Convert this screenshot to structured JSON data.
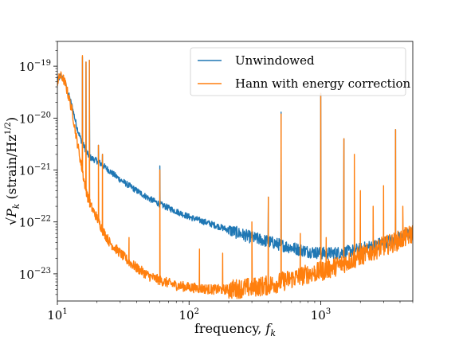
{
  "chart_data": {
    "type": "line",
    "title": "",
    "xlabel": "frequency, f_k",
    "ylabel": "√P_k (strain/Hz^1/2)",
    "xscale": "log",
    "yscale": "log",
    "xlim": [
      10,
      5000
    ],
    "ylim": [
      3e-24,
      3e-19
    ],
    "grid": false,
    "legend_position": "top-right",
    "x_ticks": [
      {
        "value": 10,
        "base": "10",
        "exp": "1"
      },
      {
        "value": 100,
        "base": "10",
        "exp": "2"
      },
      {
        "value": 1000,
        "base": "10",
        "exp": "3"
      }
    ],
    "y_ticks": [
      {
        "value": 1e-19,
        "base": "10",
        "exp": "−19"
      },
      {
        "value": 1e-20,
        "base": "10",
        "exp": "−20"
      },
      {
        "value": 1e-21,
        "base": "10",
        "exp": "−21"
      },
      {
        "value": 1e-22,
        "base": "10",
        "exp": "−22"
      },
      {
        "value": 1e-23,
        "base": "10",
        "exp": "−23"
      }
    ],
    "series": [
      {
        "name": "Unwindowed",
        "color": "#1f77b4",
        "x": [
          10,
          10.5,
          11,
          11.5,
          12,
          13,
          14,
          15,
          16,
          17,
          18,
          20,
          22,
          25,
          30,
          40,
          50,
          60,
          80,
          100,
          150,
          200,
          300,
          400,
          500,
          600,
          700,
          800,
          900,
          1000,
          1200,
          1500,
          2000,
          2500,
          3000,
          4000,
          5000
        ],
        "y": [
          5e-20,
          6.5e-20,
          6e-20,
          4.5e-20,
          3.2e-20,
          1.6e-20,
          7e-21,
          4e-21,
          2.8e-21,
          2e-21,
          1.7e-21,
          1.5e-21,
          1.25e-21,
          9.5e-22,
          6.5e-22,
          4e-22,
          2.8e-22,
          2.2e-22,
          1.6e-22,
          1.25e-22,
          9e-23,
          7e-23,
          5e-23,
          4.2e-23,
          3.6e-23,
          3.2e-23,
          2.9e-23,
          2.7e-23,
          2.6e-23,
          2.5e-23,
          2.5e-23,
          2.6e-23,
          3e-23,
          3.5e-23,
          4e-23,
          5e-23,
          6.5e-23
        ],
        "lines": [
          {
            "f": 15.5,
            "peak": 1.5e-19
          },
          {
            "f": 16.5,
            "peak": 1.2e-19
          },
          {
            "f": 17.5,
            "peak": 1.3e-19
          },
          {
            "f": 20.5,
            "peak": 3e-21
          },
          {
            "f": 22,
            "peak": 2e-21
          },
          {
            "f": 60,
            "peak": 1.2e-21
          },
          {
            "f": 300,
            "peak": 6e-23
          },
          {
            "f": 400,
            "peak": 3e-22
          },
          {
            "f": 500,
            "peak": 1.3e-20
          },
          {
            "f": 1000,
            "peak": 3e-20
          },
          {
            "f": 1500,
            "peak": 4e-21
          },
          {
            "f": 3700,
            "peak": 6e-21
          }
        ]
      },
      {
        "name": "Hann with energy correction",
        "color": "#ff7f0e",
        "x": [
          10,
          10.5,
          11,
          11.5,
          12,
          13,
          14,
          15,
          16,
          17,
          18,
          20,
          22,
          25,
          30,
          35,
          40,
          50,
          60,
          80,
          100,
          150,
          200,
          300,
          400,
          500,
          600,
          800,
          1000,
          1200,
          1500,
          2000,
          2500,
          3000,
          4000,
          5000
        ],
        "y": [
          5e-20,
          6.5e-20,
          6e-20,
          4.5e-20,
          3e-20,
          1.3e-20,
          4e-21,
          1.5e-21,
          6e-22,
          3e-22,
          2e-22,
          1.2e-22,
          7e-23,
          4e-23,
          2.5e-23,
          1.7e-23,
          1.3e-23,
          9e-24,
          7.5e-24,
          6e-24,
          5.5e-24,
          5e-24,
          5e-24,
          5.5e-24,
          6e-24,
          7e-24,
          8e-24,
          1e-23,
          1.1e-23,
          1.3e-23,
          1.6e-23,
          2.2e-23,
          2.8e-23,
          3.4e-23,
          4.5e-23,
          6e-23
        ],
        "lines": [
          {
            "f": 15.5,
            "peak": 1.6e-19
          },
          {
            "f": 16.5,
            "peak": 1.2e-19
          },
          {
            "f": 17.5,
            "peak": 1.3e-19
          },
          {
            "f": 20.5,
            "peak": 3e-21
          },
          {
            "f": 22,
            "peak": 2e-21
          },
          {
            "f": 35,
            "peak": 5e-23
          },
          {
            "f": 60,
            "peak": 1e-21
          },
          {
            "f": 120,
            "peak": 3e-23
          },
          {
            "f": 180,
            "peak": 2.5e-23
          },
          {
            "f": 300,
            "peak": 1e-22
          },
          {
            "f": 400,
            "peak": 3e-22
          },
          {
            "f": 500,
            "peak": 1.2e-20
          },
          {
            "f": 700,
            "peak": 6e-23
          },
          {
            "f": 1000,
            "peak": 3e-20
          },
          {
            "f": 1100,
            "peak": 5e-23
          },
          {
            "f": 1500,
            "peak": 4e-21
          },
          {
            "f": 1800,
            "peak": 2e-21
          },
          {
            "f": 2000,
            "peak": 4e-22
          },
          {
            "f": 2500,
            "peak": 2e-22
          },
          {
            "f": 3000,
            "peak": 5e-22
          },
          {
            "f": 3700,
            "peak": 6e-21
          },
          {
            "f": 4200,
            "peak": 2e-22
          }
        ]
      }
    ]
  }
}
